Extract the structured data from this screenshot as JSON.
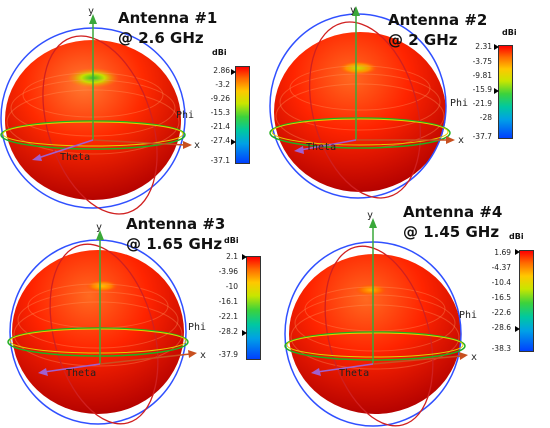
{
  "colors": {
    "sphere_main": "#ff2a00",
    "sphere_dark": "#b80000",
    "axis_z": "#3aa83a",
    "axis_x": "#c85020",
    "ring_blue": "#3050ff",
    "ring_red": "#d02020",
    "ring_green": "#20b020"
  },
  "panels": [
    {
      "title_line1": "Antenna #1",
      "title_line2": "@ 2.6 GHz",
      "unit": "dBi",
      "ticks": [
        "2.86",
        "-3.2",
        "-9.26",
        "-15.3",
        "-21.4",
        "-27.4",
        "-37.1"
      ],
      "marker_values": [
        "2.86",
        "-27.4"
      ],
      "labels": {
        "y": "y",
        "x": "x",
        "phi": "Phi",
        "theta": "Theta"
      }
    },
    {
      "title_line1": "Antenna #2",
      "title_line2": "@ 2 GHz",
      "unit": "dBi",
      "ticks": [
        "2.31",
        "-3.75",
        "-9.81",
        "-15.9",
        "-21.9",
        "-28",
        "-37.7"
      ],
      "marker_values": [
        "2.31",
        "-15.9"
      ],
      "labels": {
        "y": "y",
        "x": "x",
        "phi": "Phi",
        "theta": "Theta"
      }
    },
    {
      "title_line1": "Antenna #3",
      "title_line2": "@ 1.65 GHz",
      "unit": "dBi",
      "ticks": [
        "2.1",
        "-3.96",
        "-10",
        "-16.1",
        "-22.1",
        "-28.2",
        "-37.9"
      ],
      "marker_values": [
        "2.1",
        "-28.2"
      ],
      "labels": {
        "y": "y",
        "x": "x",
        "phi": "Phi",
        "theta": "Theta"
      }
    },
    {
      "title_line1": "Antenna #4",
      "title_line2": "@ 1.45 GHz",
      "unit": "dBi",
      "ticks": [
        "1.69",
        "-4.37",
        "-10.4",
        "-16.5",
        "-22.6",
        "-28.6",
        "-38.3"
      ],
      "marker_values": [
        "1.69",
        "-28.6"
      ],
      "labels": {
        "y": "y",
        "x": "x",
        "phi": "Phi",
        "theta": "Theta"
      }
    }
  ]
}
